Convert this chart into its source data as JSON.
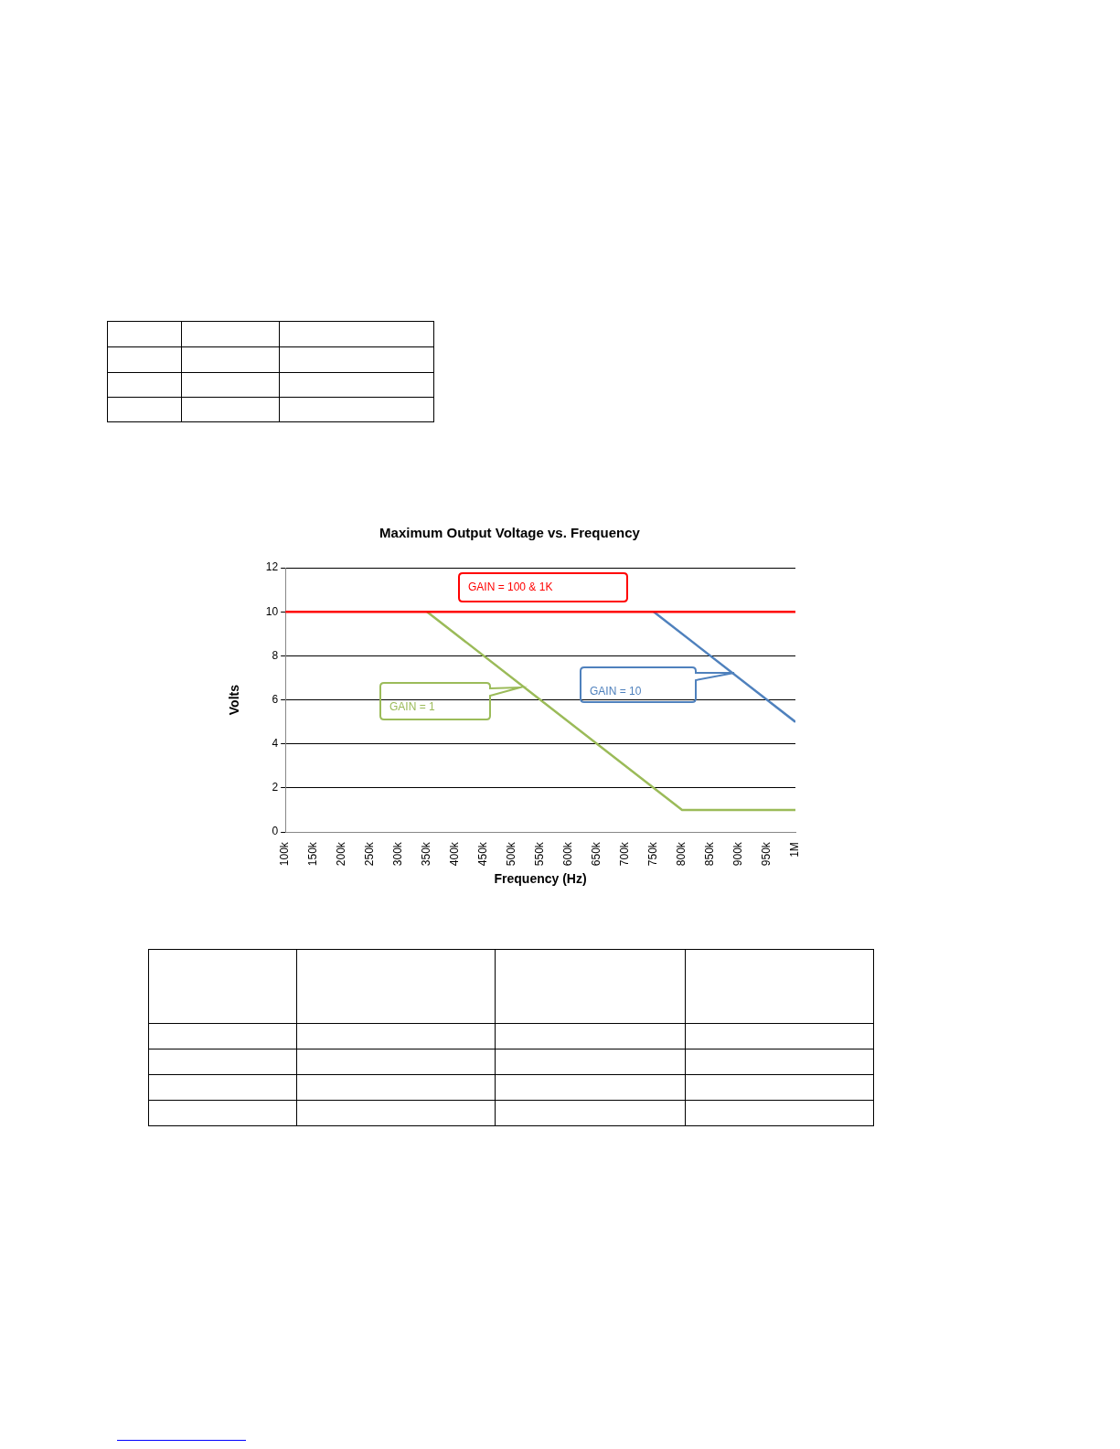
{
  "chart_data": {
    "type": "line",
    "title": "Maximum Output Voltage vs. Frequency",
    "xlabel": "Frequency (Hz)",
    "ylabel": "Volts",
    "xlim": [
      100000,
      1000000
    ],
    "xticks": [
      {
        "value": 100000,
        "label": "100k"
      },
      {
        "value": 150000,
        "label": "150k"
      },
      {
        "value": 200000,
        "label": "200k"
      },
      {
        "value": 250000,
        "label": "250k"
      },
      {
        "value": 300000,
        "label": "300k"
      },
      {
        "value": 350000,
        "label": "350k"
      },
      {
        "value": 400000,
        "label": "400k"
      },
      {
        "value": 450000,
        "label": "450k"
      },
      {
        "value": 500000,
        "label": "500k"
      },
      {
        "value": 550000,
        "label": "550k"
      },
      {
        "value": 600000,
        "label": "600k"
      },
      {
        "value": 650000,
        "label": "650k"
      },
      {
        "value": 700000,
        "label": "700k"
      },
      {
        "value": 750000,
        "label": "750k"
      },
      {
        "value": 800000,
        "label": "800k"
      },
      {
        "value": 850000,
        "label": "850k"
      },
      {
        "value": 900000,
        "label": "900k"
      },
      {
        "value": 950000,
        "label": "950k"
      },
      {
        "value": 1000000,
        "label": "1M"
      }
    ],
    "ylim": [
      0,
      12
    ],
    "yticks": [
      0,
      2,
      4,
      6,
      8,
      10,
      12
    ],
    "grid": "y",
    "series": [
      {
        "name": "GAIN = 100 & 1K",
        "color": "#ff0000",
        "x": [
          100000,
          1000000
        ],
        "values": [
          10,
          10
        ]
      },
      {
        "name": "GAIN = 1",
        "color": "#9bbb59",
        "x": [
          350000,
          800000,
          1000000
        ],
        "values": [
          10,
          1,
          1
        ]
      },
      {
        "name": "GAIN = 10",
        "color": "#4f81bd",
        "x": [
          750000,
          1000000
        ],
        "values": [
          10,
          5
        ]
      }
    ]
  }
}
